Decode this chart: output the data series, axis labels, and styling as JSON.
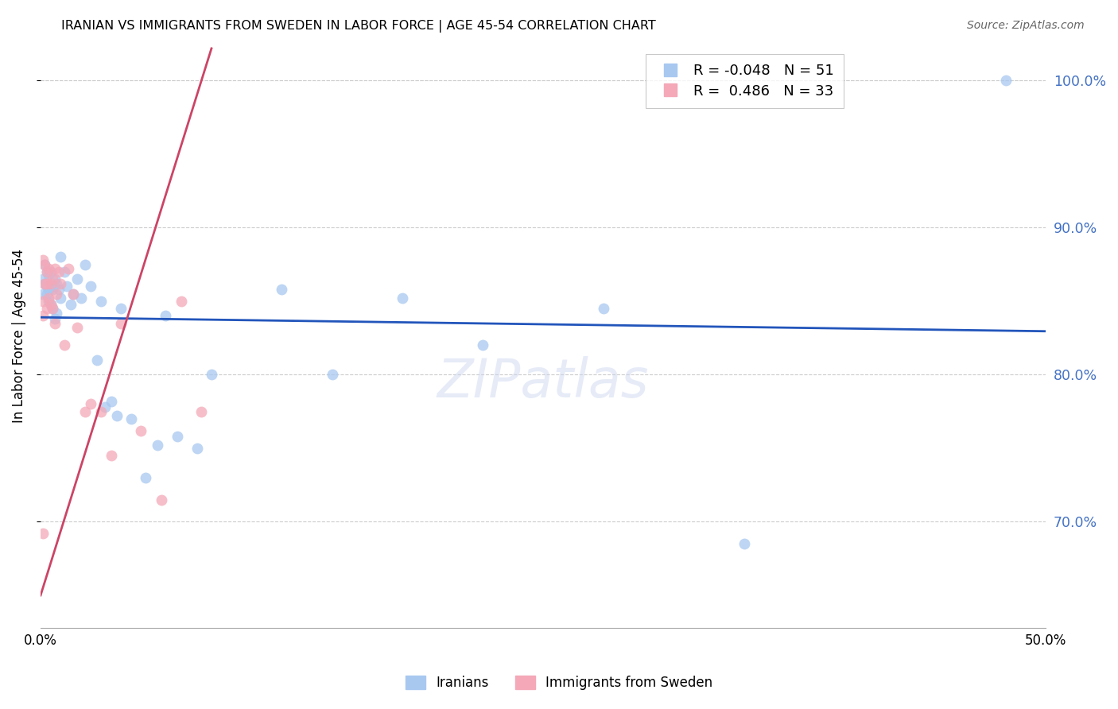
{
  "title": "IRANIAN VS IMMIGRANTS FROM SWEDEN IN LABOR FORCE | AGE 45-54 CORRELATION CHART",
  "source": "Source: ZipAtlas.com",
  "ylabel": "In Labor Force | Age 45-54",
  "R_iranians": -0.048,
  "N_iranians": 51,
  "R_sweden": 0.486,
  "N_sweden": 33,
  "blue_color": "#a8c8f0",
  "pink_color": "#f4a8b8",
  "blue_line_color": "#2255bb",
  "pink_line_color": "#cc4466",
  "marker_size": 100,
  "x_min": 0.0,
  "x_max": 0.5,
  "y_min": 0.628,
  "y_max": 1.025,
  "y_ticks": [
    0.7,
    0.8,
    0.9,
    1.0
  ],
  "y_tick_labels": [
    "70.0%",
    "80.0%",
    "90.0%",
    "100.0%"
  ],
  "grid_color": "#cccccc",
  "iranians_x": [
    0.001,
    0.001,
    0.002,
    0.002,
    0.003,
    0.003,
    0.003,
    0.004,
    0.004,
    0.004,
    0.005,
    0.005,
    0.005,
    0.006,
    0.006,
    0.006,
    0.007,
    0.007,
    0.008,
    0.008,
    0.009,
    0.01,
    0.01,
    0.012,
    0.013,
    0.015,
    0.016,
    0.018,
    0.02,
    0.022,
    0.025,
    0.028,
    0.03,
    0.032,
    0.035,
    0.038,
    0.04,
    0.045,
    0.052,
    0.058,
    0.062,
    0.068,
    0.078,
    0.085,
    0.12,
    0.145,
    0.18,
    0.22,
    0.28,
    0.35,
    0.48
  ],
  "iranians_y": [
    0.855,
    0.865,
    0.875,
    0.862,
    0.87,
    0.86,
    0.855,
    0.868,
    0.858,
    0.85,
    0.862,
    0.848,
    0.87,
    0.858,
    0.845,
    0.86,
    0.865,
    0.838,
    0.862,
    0.842,
    0.858,
    0.88,
    0.852,
    0.87,
    0.86,
    0.848,
    0.855,
    0.865,
    0.852,
    0.875,
    0.86,
    0.81,
    0.85,
    0.778,
    0.782,
    0.772,
    0.845,
    0.77,
    0.73,
    0.752,
    0.84,
    0.758,
    0.75,
    0.8,
    0.858,
    0.8,
    0.852,
    0.82,
    0.845,
    0.685,
    1.0
  ],
  "sweden_x": [
    0.001,
    0.001,
    0.001,
    0.002,
    0.002,
    0.003,
    0.003,
    0.003,
    0.004,
    0.004,
    0.005,
    0.005,
    0.006,
    0.006,
    0.007,
    0.007,
    0.008,
    0.009,
    0.01,
    0.012,
    0.014,
    0.016,
    0.018,
    0.022,
    0.025,
    0.03,
    0.035,
    0.04,
    0.05,
    0.06,
    0.07,
    0.08,
    0.001
  ],
  "sweden_y": [
    0.84,
    0.85,
    0.878,
    0.862,
    0.875,
    0.87,
    0.845,
    0.862,
    0.852,
    0.872,
    0.862,
    0.848,
    0.865,
    0.845,
    0.872,
    0.835,
    0.855,
    0.87,
    0.862,
    0.82,
    0.872,
    0.855,
    0.832,
    0.775,
    0.78,
    0.775,
    0.745,
    0.835,
    0.762,
    0.715,
    0.85,
    0.775,
    0.692
  ]
}
